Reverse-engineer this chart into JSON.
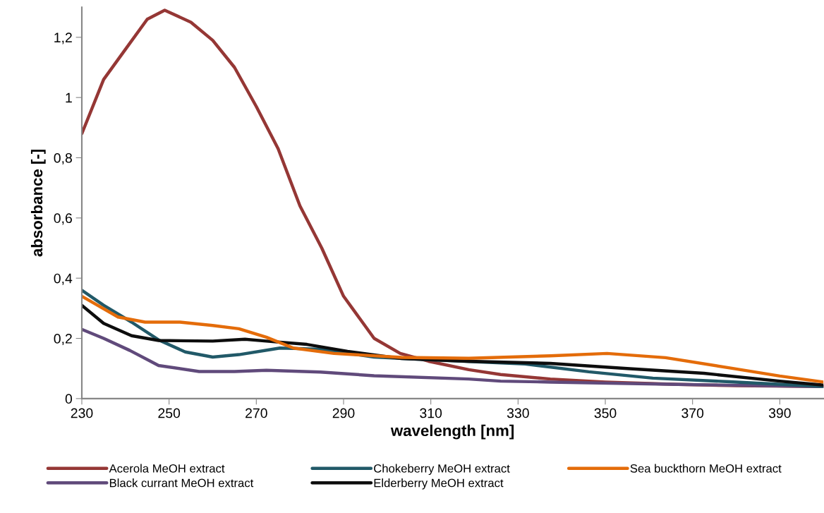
{
  "chart_data": {
    "type": "line",
    "xlabel": "wavelength [nm]",
    "ylabel": "absorbance [-]",
    "xlim": [
      230,
      400
    ],
    "xticks": [
      230,
      250,
      270,
      290,
      310,
      330,
      350,
      370,
      390
    ],
    "ylim": [
      0,
      1.3
    ],
    "yticks": [
      0,
      {
        "value": 0.2,
        "label": "0,2"
      },
      {
        "value": 0.4,
        "label": "0,4"
      },
      {
        "value": 0.6,
        "label": "0,6"
      },
      {
        "value": 0.8,
        "label": "0,8"
      },
      1,
      {
        "value": 1.2,
        "label": "1,2"
      }
    ],
    "grid": false,
    "legend": "bottom",
    "marker": "none",
    "line_style": "solid",
    "series": [
      {
        "name": "Acerola MeOH extract",
        "color": "#953735",
        "x": [
          230,
          235,
          240,
          245,
          249,
          255,
          260,
          265,
          270,
          275,
          280,
          285,
          290,
          293,
          297,
          303,
          309.5,
          318.7,
          326,
          337.4,
          350,
          366.7,
          380,
          400
        ],
        "values": [
          0.88,
          1.06,
          1.16,
          1.26,
          1.29,
          1.25,
          1.19,
          1.1,
          0.97,
          0.83,
          0.64,
          0.5,
          0.34,
          0.28,
          0.2,
          0.15,
          0.124,
          0.096,
          0.08,
          0.065,
          0.055,
          0.047,
          0.043,
          0.04
        ]
      },
      {
        "name": "Black currant MeOH extract",
        "color": "#604a7b",
        "x": [
          230,
          235,
          241,
          247.6,
          256.9,
          265,
          272.3,
          284.7,
          297,
          318.7,
          326,
          337.4,
          366.7,
          400
        ],
        "values": [
          0.23,
          0.2,
          0.16,
          0.11,
          0.09,
          0.09,
          0.094,
          0.088,
          0.076,
          0.065,
          0.058,
          0.055,
          0.047,
          0.04
        ]
      },
      {
        "name": "Chokeberry MeOH extract",
        "color": "#215968",
        "x": [
          230,
          235,
          241.4,
          247.6,
          253.7,
          260,
          266,
          275.4,
          284.7,
          297,
          309.5,
          331.6,
          346.2,
          360.9,
          378.5,
          400
        ],
        "values": [
          0.36,
          0.31,
          0.254,
          0.195,
          0.155,
          0.138,
          0.146,
          0.168,
          0.164,
          0.138,
          0.129,
          0.115,
          0.089,
          0.068,
          0.056,
          0.04
        ]
      },
      {
        "name": "Elderberry MeOH extract",
        "color": "#0d0d0d",
        "x": [
          230,
          235,
          241.4,
          247.6,
          260,
          267.4,
          272.3,
          281.6,
          290.9,
          303.3,
          318.7,
          337.4,
          355,
          372.6,
          390,
          400
        ],
        "values": [
          0.31,
          0.25,
          0.209,
          0.193,
          0.191,
          0.197,
          0.191,
          0.18,
          0.157,
          0.133,
          0.124,
          0.117,
          0.1,
          0.084,
          0.058,
          0.045
        ]
      },
      {
        "name": "Sea buckthorn MeOH extract",
        "color": "#e46c0a",
        "x": [
          230,
          238.3,
          244.5,
          252.5,
          260,
          266,
          272.3,
          278.5,
          287.8,
          303.3,
          318.7,
          337.4,
          350.4,
          363.8,
          378.5,
          390,
          400
        ],
        "values": [
          0.34,
          0.271,
          0.254,
          0.254,
          0.243,
          0.232,
          0.204,
          0.168,
          0.15,
          0.137,
          0.134,
          0.142,
          0.15,
          0.136,
          0.102,
          0.075,
          0.055
        ]
      }
    ]
  }
}
